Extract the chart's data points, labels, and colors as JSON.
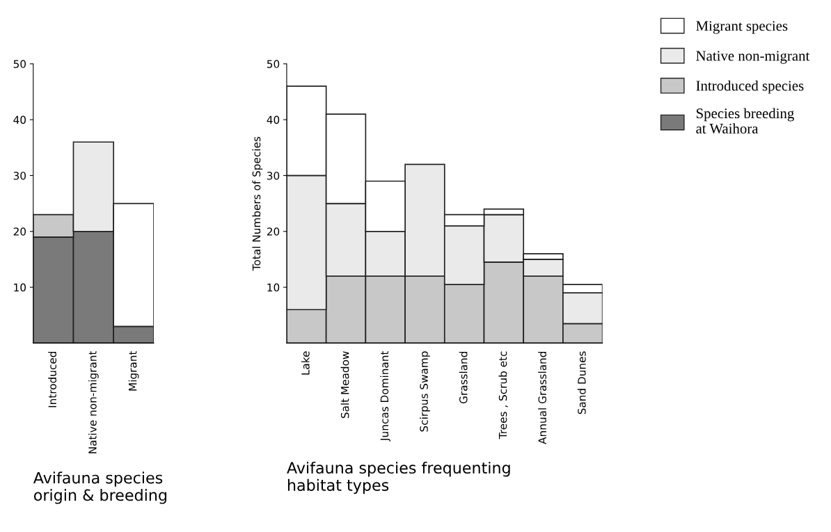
{
  "chart_data": [
    {
      "type": "bar",
      "stacked": true,
      "xlabel": "Avifauna species\norigin & breeding",
      "categories": [
        "Introduced",
        "Native non-migrant",
        "Migrant"
      ],
      "ylim": [
        0,
        50
      ],
      "yticks": [
        10,
        20,
        30,
        40,
        50
      ],
      "series": [
        {
          "name": "Species breeding\nat Waihora",
          "color": "#7a7a7a",
          "values": [
            19,
            20,
            3
          ]
        },
        {
          "colors": [
            "#c8c8c8",
            "#eaeaea",
            "#ffffff"
          ],
          "values": [
            4,
            16,
            22
          ]
        }
      ]
    },
    {
      "type": "bar",
      "stacked": true,
      "xlabel": "Avifauna species frequenting\nhabitat types",
      "ylabel": "Total Numbers of Species",
      "legend": "top right",
      "categories": [
        "Lake",
        "Salt Meadow",
        "Juncas Dominant",
        "Scirpus Swamp",
        "Grassland",
        "Trees , Scrub etc",
        "Annual Grassland",
        "Sand Dunes"
      ],
      "ylim": [
        0,
        50
      ],
      "yticks": [
        10,
        20,
        30,
        40,
        50
      ],
      "series": [
        {
          "name": "Introduced species",
          "color": "#c8c8c8",
          "values": [
            6,
            12,
            12,
            12,
            10.5,
            14.5,
            12,
            3.5
          ]
        },
        {
          "name": "Native non-migrant",
          "color": "#eaeaea",
          "values": [
            24,
            13,
            8,
            20,
            10.5,
            8.5,
            3,
            5.5
          ]
        },
        {
          "name": "Migrant species",
          "color": "#ffffff",
          "values": [
            16,
            16,
            9,
            0,
            2,
            1,
            1,
            1.5
          ]
        }
      ]
    }
  ]
}
